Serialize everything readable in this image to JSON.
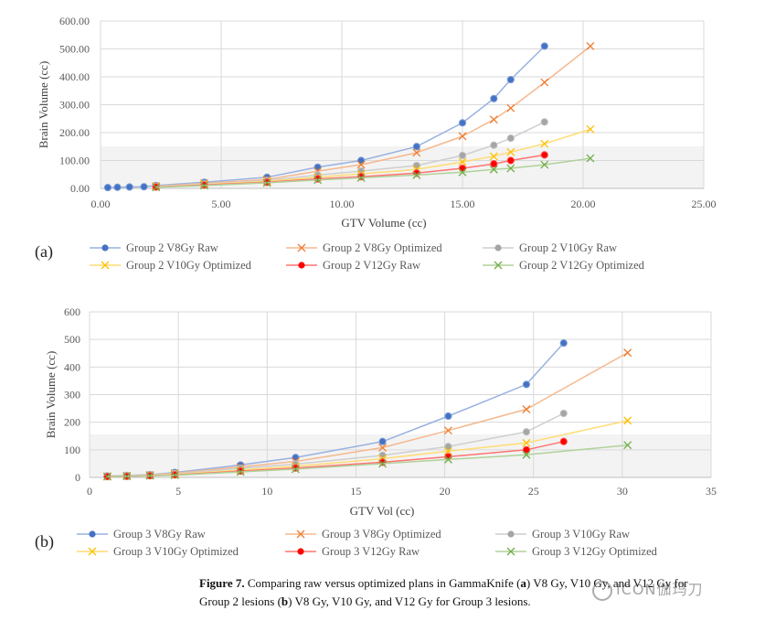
{
  "chart_data": [
    {
      "id": "a",
      "type": "line",
      "panel_label": "(a)",
      "xlabel": "GTV Volume (cc)",
      "ylabel": "Brain Volume (cc)",
      "xlim": [
        0,
        25
      ],
      "ylim": [
        0,
        600
      ],
      "xticks": [
        0,
        5,
        10,
        15,
        20,
        25
      ],
      "yticks": [
        0,
        100,
        200,
        300,
        400,
        500,
        600
      ],
      "xtick_labels": [
        "0.00",
        "5.00",
        "10.00",
        "15.00",
        "20.00",
        "25.00"
      ],
      "ytick_labels": [
        "0.00",
        "100.00",
        "200.00",
        "300.00",
        "400.00",
        "500.00",
        "600.00"
      ],
      "grid": "vertical and horizontal",
      "legend_position": "bottom",
      "series": [
        {
          "name": "Group 2 V8Gy  Raw",
          "color": "#4472C4",
          "marker": "circle",
          "x": [
            0.3,
            0.7,
            1.2,
            1.8,
            2.3,
            4.3,
            6.9,
            9.0,
            10.8,
            13.1,
            15.0,
            16.3,
            17.0,
            18.4
          ],
          "y": [
            3,
            4,
            5,
            6,
            10,
            22,
            40,
            76,
            100,
            150,
            235,
            322,
            390,
            510
          ]
        },
        {
          "name": "Group 2 V8Gy Optimized",
          "color": "#ED7D31",
          "marker": "x",
          "x": [
            2.3,
            4.3,
            6.9,
            9.0,
            10.8,
            13.1,
            15.0,
            16.3,
            17.0,
            18.4,
            20.3
          ],
          "y": [
            8,
            18,
            32,
            62,
            85,
            128,
            187,
            247,
            288,
            380,
            510
          ]
        },
        {
          "name": "Group 2 V10Gy Raw",
          "color": "#A5A5A5",
          "marker": "circle",
          "x": [
            2.3,
            4.3,
            6.9,
            9.0,
            10.8,
            13.1,
            15.0,
            16.3,
            17.0,
            18.4
          ],
          "y": [
            7,
            16,
            28,
            48,
            62,
            82,
            118,
            155,
            180,
            238
          ]
        },
        {
          "name": "Group 2 V10Gy Optimized",
          "color": "#FFC000",
          "marker": "x",
          "x": [
            2.3,
            4.3,
            6.9,
            9.0,
            10.8,
            13.1,
            15.0,
            16.3,
            17.0,
            18.4,
            20.3
          ],
          "y": [
            6,
            14,
            25,
            40,
            52,
            68,
            95,
            115,
            130,
            160,
            212
          ]
        },
        {
          "name": "Group 2 V12Gy Raw",
          "color": "#FF0000",
          "marker": "circle",
          "x": [
            2.3,
            4.3,
            6.9,
            9.0,
            10.8,
            13.1,
            15.0,
            16.3,
            17.0,
            18.4
          ],
          "y": [
            5,
            12,
            22,
            34,
            42,
            55,
            72,
            88,
            100,
            120
          ]
        },
        {
          "name": "Group 2 V12Gy Optimized",
          "color": "#70AD47",
          "marker": "x",
          "x": [
            2.3,
            4.3,
            6.9,
            9.0,
            10.8,
            13.1,
            15.0,
            16.3,
            17.0,
            18.4,
            20.3
          ],
          "y": [
            4,
            10,
            20,
            30,
            38,
            48,
            58,
            68,
            72,
            85,
            108
          ]
        }
      ]
    },
    {
      "id": "b",
      "type": "line",
      "panel_label": "(b)",
      "xlabel": "GTV Vol (cc)",
      "ylabel": "Brain Volume (cc)",
      "xlim": [
        0,
        35
      ],
      "ylim": [
        0,
        600
      ],
      "xticks": [
        0,
        5,
        10,
        15,
        20,
        25,
        30,
        35
      ],
      "yticks": [
        0,
        100,
        200,
        300,
        400,
        500,
        600
      ],
      "xtick_labels": [
        "0",
        "5",
        "10",
        "15",
        "20",
        "25",
        "30",
        "35"
      ],
      "ytick_labels": [
        "0",
        "100",
        "200",
        "300",
        "400",
        "500",
        "600"
      ],
      "grid": "vertical and horizontal",
      "legend_position": "bottom",
      "series": [
        {
          "name": "Group 3 V8Gy Raw",
          "color": "#4472C4",
          "marker": "circle",
          "x": [
            1.0,
            2.1,
            3.4,
            4.8,
            8.5,
            11.6,
            16.5,
            20.2,
            24.6,
            26.7
          ],
          "y": [
            5,
            7,
            10,
            18,
            45,
            72,
            130,
            222,
            337,
            487
          ]
        },
        {
          "name": "Group 3 V8Gy Optimized",
          "color": "#ED7D31",
          "marker": "x",
          "x": [
            1.0,
            2.1,
            3.4,
            4.8,
            8.5,
            11.6,
            16.5,
            20.2,
            24.6,
            30.3
          ],
          "y": [
            4,
            6,
            9,
            15,
            38,
            58,
            108,
            170,
            247,
            452
          ]
        },
        {
          "name": "Group 3 V10Gy Raw",
          "color": "#A5A5A5",
          "marker": "circle",
          "x": [
            1.0,
            2.1,
            3.4,
            4.8,
            8.5,
            11.6,
            16.5,
            20.2,
            24.6,
            26.7
          ],
          "y": [
            4,
            6,
            8,
            13,
            33,
            48,
            80,
            112,
            165,
            232
          ]
        },
        {
          "name": "Group 3 V10Gy Optimized",
          "color": "#FFC000",
          "marker": "x",
          "x": [
            1.0,
            2.1,
            3.4,
            4.8,
            8.5,
            11.6,
            16.5,
            20.2,
            24.6,
            30.3
          ],
          "y": [
            3,
            5,
            7,
            11,
            27,
            40,
            68,
            95,
            125,
            206
          ]
        },
        {
          "name": "Group 3 V12Gy Raw",
          "color": "#FF0000",
          "marker": "circle",
          "x": [
            1.0,
            2.1,
            3.4,
            4.8,
            8.5,
            11.6,
            16.5,
            20.2,
            24.6,
            26.7
          ],
          "y": [
            3,
            4,
            6,
            9,
            23,
            34,
            55,
            75,
            100,
            130
          ]
        },
        {
          "name": "Group 3 V12Gy Optimized",
          "color": "#70AD47",
          "marker": "x",
          "x": [
            1.0,
            2.1,
            3.4,
            4.8,
            8.5,
            11.6,
            16.5,
            20.2,
            24.6,
            30.3
          ],
          "y": [
            3,
            4,
            6,
            8,
            20,
            30,
            50,
            65,
            82,
            117
          ]
        }
      ]
    }
  ],
  "caption": {
    "label": "Figure 7.",
    "line1_text": " Comparing raw versus optimized plans in GammaKnife (",
    "a_bold": "a",
    "line1_after_a": ") V8 Gy, V10 Gy, and V12 Gy for",
    "line2_text": "Group 2 lesions (",
    "b_bold": "b",
    "line2_after_b": ") V8 Gy, V10 Gy, and V12 Gy for Group 3 lesions."
  },
  "watermark": {
    "text": "ICON伽玛刀"
  }
}
